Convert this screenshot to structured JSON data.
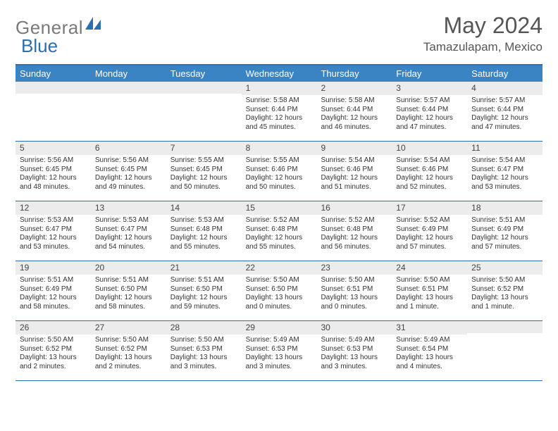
{
  "brand": {
    "text1": "General",
    "text2": "Blue"
  },
  "title": "May 2024",
  "location": "Tamazulapam, Mexico",
  "colors": {
    "header_bg": "#3b84c4",
    "header_text": "#ffffff",
    "border": "#2b6fb3",
    "daynum_bg": "#ececec",
    "body_text": "#333333",
    "logo_gray": "#7a7a7a",
    "logo_blue": "#2b6fb3"
  },
  "day_names": [
    "Sunday",
    "Monday",
    "Tuesday",
    "Wednesday",
    "Thursday",
    "Friday",
    "Saturday"
  ],
  "weeks": [
    [
      {
        "n": "",
        "sr": "",
        "ss": "",
        "dl": ""
      },
      {
        "n": "",
        "sr": "",
        "ss": "",
        "dl": ""
      },
      {
        "n": "",
        "sr": "",
        "ss": "",
        "dl": ""
      },
      {
        "n": "1",
        "sr": "5:58 AM",
        "ss": "6:44 PM",
        "dl": "12 hours and 45 minutes."
      },
      {
        "n": "2",
        "sr": "5:58 AM",
        "ss": "6:44 PM",
        "dl": "12 hours and 46 minutes."
      },
      {
        "n": "3",
        "sr": "5:57 AM",
        "ss": "6:44 PM",
        "dl": "12 hours and 47 minutes."
      },
      {
        "n": "4",
        "sr": "5:57 AM",
        "ss": "6:44 PM",
        "dl": "12 hours and 47 minutes."
      }
    ],
    [
      {
        "n": "5",
        "sr": "5:56 AM",
        "ss": "6:45 PM",
        "dl": "12 hours and 48 minutes."
      },
      {
        "n": "6",
        "sr": "5:56 AM",
        "ss": "6:45 PM",
        "dl": "12 hours and 49 minutes."
      },
      {
        "n": "7",
        "sr": "5:55 AM",
        "ss": "6:45 PM",
        "dl": "12 hours and 50 minutes."
      },
      {
        "n": "8",
        "sr": "5:55 AM",
        "ss": "6:46 PM",
        "dl": "12 hours and 50 minutes."
      },
      {
        "n": "9",
        "sr": "5:54 AM",
        "ss": "6:46 PM",
        "dl": "12 hours and 51 minutes."
      },
      {
        "n": "10",
        "sr": "5:54 AM",
        "ss": "6:46 PM",
        "dl": "12 hours and 52 minutes."
      },
      {
        "n": "11",
        "sr": "5:54 AM",
        "ss": "6:47 PM",
        "dl": "12 hours and 53 minutes."
      }
    ],
    [
      {
        "n": "12",
        "sr": "5:53 AM",
        "ss": "6:47 PM",
        "dl": "12 hours and 53 minutes."
      },
      {
        "n": "13",
        "sr": "5:53 AM",
        "ss": "6:47 PM",
        "dl": "12 hours and 54 minutes."
      },
      {
        "n": "14",
        "sr": "5:53 AM",
        "ss": "6:48 PM",
        "dl": "12 hours and 55 minutes."
      },
      {
        "n": "15",
        "sr": "5:52 AM",
        "ss": "6:48 PM",
        "dl": "12 hours and 55 minutes."
      },
      {
        "n": "16",
        "sr": "5:52 AM",
        "ss": "6:48 PM",
        "dl": "12 hours and 56 minutes."
      },
      {
        "n": "17",
        "sr": "5:52 AM",
        "ss": "6:49 PM",
        "dl": "12 hours and 57 minutes."
      },
      {
        "n": "18",
        "sr": "5:51 AM",
        "ss": "6:49 PM",
        "dl": "12 hours and 57 minutes."
      }
    ],
    [
      {
        "n": "19",
        "sr": "5:51 AM",
        "ss": "6:49 PM",
        "dl": "12 hours and 58 minutes."
      },
      {
        "n": "20",
        "sr": "5:51 AM",
        "ss": "6:50 PM",
        "dl": "12 hours and 58 minutes."
      },
      {
        "n": "21",
        "sr": "5:51 AM",
        "ss": "6:50 PM",
        "dl": "12 hours and 59 minutes."
      },
      {
        "n": "22",
        "sr": "5:50 AM",
        "ss": "6:50 PM",
        "dl": "13 hours and 0 minutes."
      },
      {
        "n": "23",
        "sr": "5:50 AM",
        "ss": "6:51 PM",
        "dl": "13 hours and 0 minutes."
      },
      {
        "n": "24",
        "sr": "5:50 AM",
        "ss": "6:51 PM",
        "dl": "13 hours and 1 minute."
      },
      {
        "n": "25",
        "sr": "5:50 AM",
        "ss": "6:52 PM",
        "dl": "13 hours and 1 minute."
      }
    ],
    [
      {
        "n": "26",
        "sr": "5:50 AM",
        "ss": "6:52 PM",
        "dl": "13 hours and 2 minutes."
      },
      {
        "n": "27",
        "sr": "5:50 AM",
        "ss": "6:52 PM",
        "dl": "13 hours and 2 minutes."
      },
      {
        "n": "28",
        "sr": "5:50 AM",
        "ss": "6:53 PM",
        "dl": "13 hours and 3 minutes."
      },
      {
        "n": "29",
        "sr": "5:49 AM",
        "ss": "6:53 PM",
        "dl": "13 hours and 3 minutes."
      },
      {
        "n": "30",
        "sr": "5:49 AM",
        "ss": "6:53 PM",
        "dl": "13 hours and 3 minutes."
      },
      {
        "n": "31",
        "sr": "5:49 AM",
        "ss": "6:54 PM",
        "dl": "13 hours and 4 minutes."
      },
      {
        "n": "",
        "sr": "",
        "ss": "",
        "dl": ""
      }
    ]
  ],
  "labels": {
    "sunrise": "Sunrise:",
    "sunset": "Sunset:",
    "daylight": "Daylight:"
  }
}
